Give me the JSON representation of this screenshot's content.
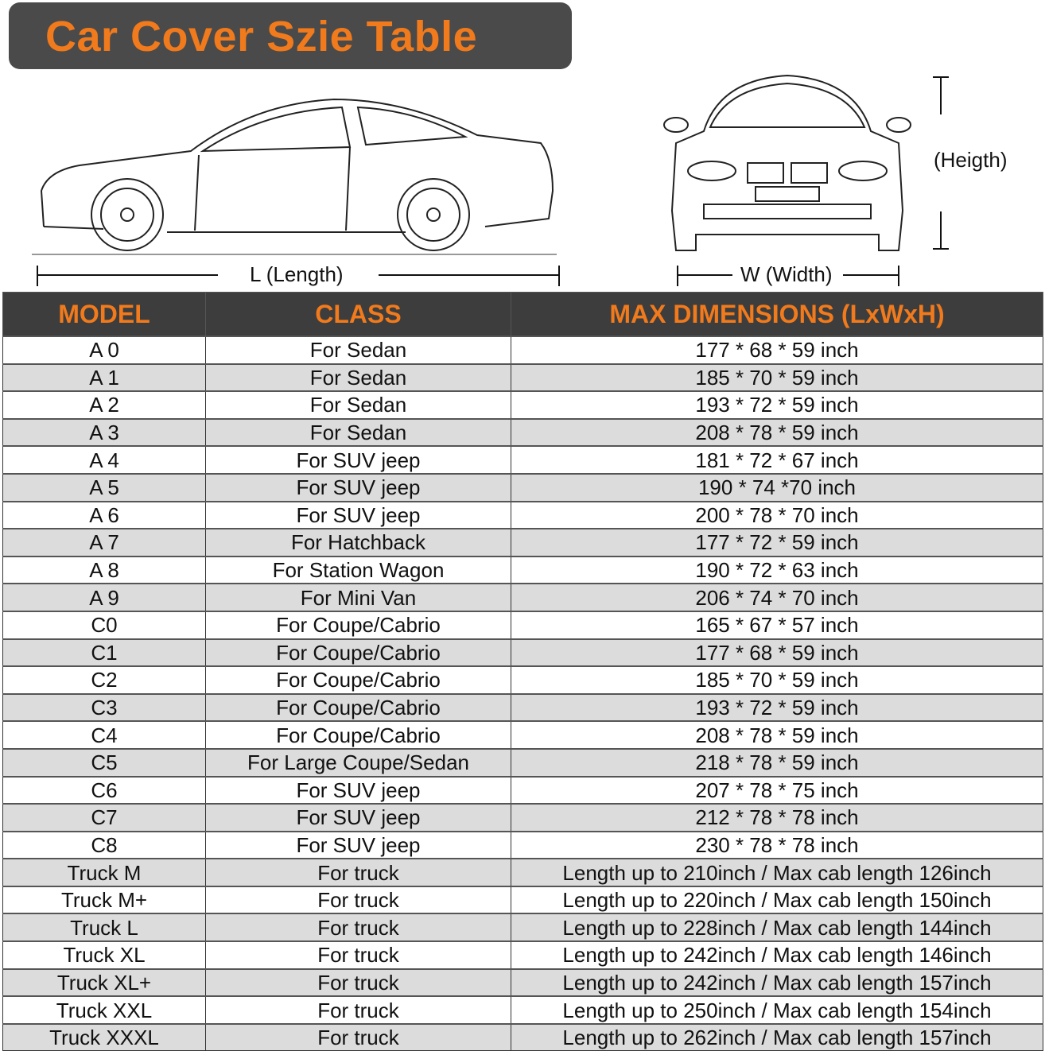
{
  "title": "Car Cover Szie Table",
  "labels": {
    "length": "L (Length)",
    "width": "W (Width)",
    "height": "(Heigth)"
  },
  "colors": {
    "accent": "#f07a1c",
    "header_bg": "#3d3d3d",
    "title_bg": "#4a4a4a",
    "alt_row": "#dcdcdc"
  },
  "table": {
    "headers": [
      "MODEL",
      "CLASS",
      "MAX DIMENSIONS (LxWxH)"
    ],
    "rows": [
      [
        "A 0",
        "For Sedan",
        "177 * 68 * 59 inch"
      ],
      [
        "A 1",
        "For Sedan",
        "185 * 70 * 59 inch"
      ],
      [
        "A 2",
        "For Sedan",
        "193 * 72 * 59 inch"
      ],
      [
        "A 3",
        "For Sedan",
        "208 * 78 * 59 inch"
      ],
      [
        "A 4",
        "For SUV jeep",
        "181 * 72 * 67 inch"
      ],
      [
        "A 5",
        "For SUV jeep",
        "190 * 74  *70 inch"
      ],
      [
        "A 6",
        "For SUV jeep",
        "200 * 78 * 70 inch"
      ],
      [
        "A 7",
        "For Hatchback",
        "177 * 72 * 59 inch"
      ],
      [
        "A 8",
        "For Station Wagon",
        "190 * 72 * 63 inch"
      ],
      [
        "A 9",
        "For Mini Van",
        "206 * 74 * 70 inch"
      ],
      [
        "C0",
        "For Coupe/Cabrio",
        "165 * 67 * 57 inch"
      ],
      [
        "C1",
        "For Coupe/Cabrio",
        "177 * 68 * 59 inch"
      ],
      [
        "C2",
        "For Coupe/Cabrio",
        "185 * 70 * 59 inch"
      ],
      [
        "C3",
        "For Coupe/Cabrio",
        "193 * 72 * 59 inch"
      ],
      [
        "C4",
        "For Coupe/Cabrio",
        "208 * 78 * 59 inch"
      ],
      [
        "C5",
        "For Large Coupe/Sedan",
        "218 * 78 * 59 inch"
      ],
      [
        "C6",
        "For SUV jeep",
        "207 * 78 * 75 inch"
      ],
      [
        "C7",
        "For SUV jeep",
        "212 * 78 * 78 inch"
      ],
      [
        "C8",
        "For SUV jeep",
        "230 * 78 * 78 inch"
      ],
      [
        "Truck M",
        "For truck",
        "Length up to 210inch / Max cab length 126inch"
      ],
      [
        "Truck M+",
        "For truck",
        "Length up to 220inch / Max cab length 150inch"
      ],
      [
        "Truck L",
        "For truck",
        "Length up to 228inch / Max cab length 144inch"
      ],
      [
        "Truck XL",
        "For truck",
        "Length up to 242inch / Max cab length 146inch"
      ],
      [
        "Truck XL+",
        "For truck",
        "Length up to 242inch / Max cab length 157inch"
      ],
      [
        "Truck XXL",
        "For truck",
        "Length up to 250inch / Max cab length 154inch"
      ],
      [
        "Truck XXXL",
        "For truck",
        "Length up to 262inch / Max cab length 157inch"
      ]
    ]
  }
}
